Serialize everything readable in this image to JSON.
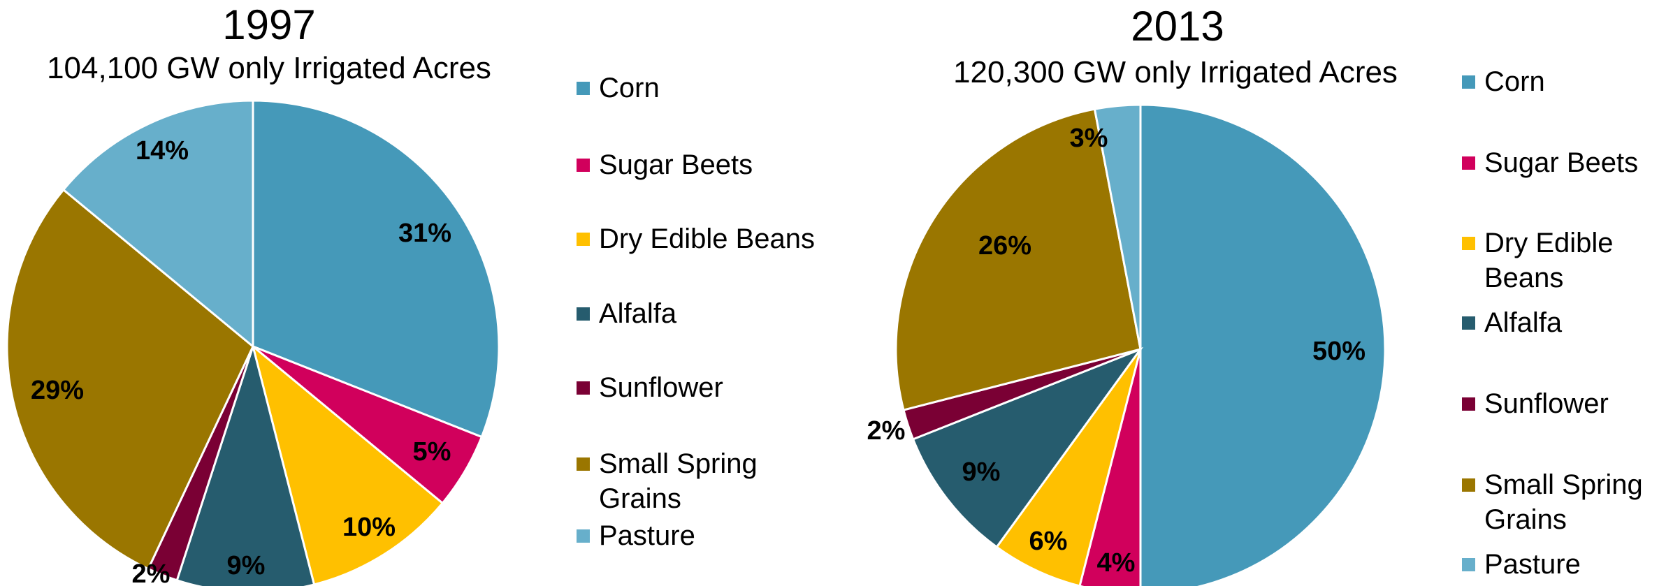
{
  "chart_data": [
    {
      "type": "pie",
      "title": "1997",
      "subtitle": "104,100 GW only Irrigated Acres",
      "categories": [
        "Corn",
        "Sugar Beets",
        "Dry Edible Beans",
        "Alfalfa",
        "Sunflower",
        "Small Spring Grains",
        "Pasture"
      ],
      "values": [
        31,
        5,
        10,
        9,
        2,
        29,
        14
      ],
      "labels": [
        "31%",
        "5%",
        "10%",
        "9%",
        "2%",
        "29%",
        "14%"
      ],
      "colors": [
        "#4599B9",
        "#D1005C",
        "#FFC000",
        "#265C6E",
        "#7A0034",
        "#9A7600",
        "#67AFCB"
      ],
      "legend_placement": "right",
      "legend": [
        "Corn",
        "Sugar Beets",
        "Dry Edible Beans",
        "Alfalfa",
        "Sunflower",
        "Small Spring Grains",
        "Pasture"
      ]
    },
    {
      "type": "pie",
      "title": "2013",
      "subtitle": "120,300 GW only Irrigated Acres",
      "categories": [
        "Corn",
        "Sugar Beets",
        "Dry Edible Beans",
        "Alfalfa",
        "Sunflower",
        "Small Spring Grains",
        "Pasture"
      ],
      "values": [
        50,
        4,
        6,
        9,
        2,
        26,
        3
      ],
      "labels": [
        "50%",
        "4%",
        "6%",
        "9%",
        "2%",
        "26%",
        "3%"
      ],
      "colors": [
        "#4599B9",
        "#D1005C",
        "#FFC000",
        "#265C6E",
        "#7A0034",
        "#9A7600",
        "#67AFCB"
      ],
      "legend_placement": "right",
      "legend": [
        "Corn",
        "Sugar Beets",
        "Dry Edible Beans",
        "Alfalfa",
        "Sunflower",
        "Small Spring Grains",
        "Pasture"
      ]
    }
  ]
}
